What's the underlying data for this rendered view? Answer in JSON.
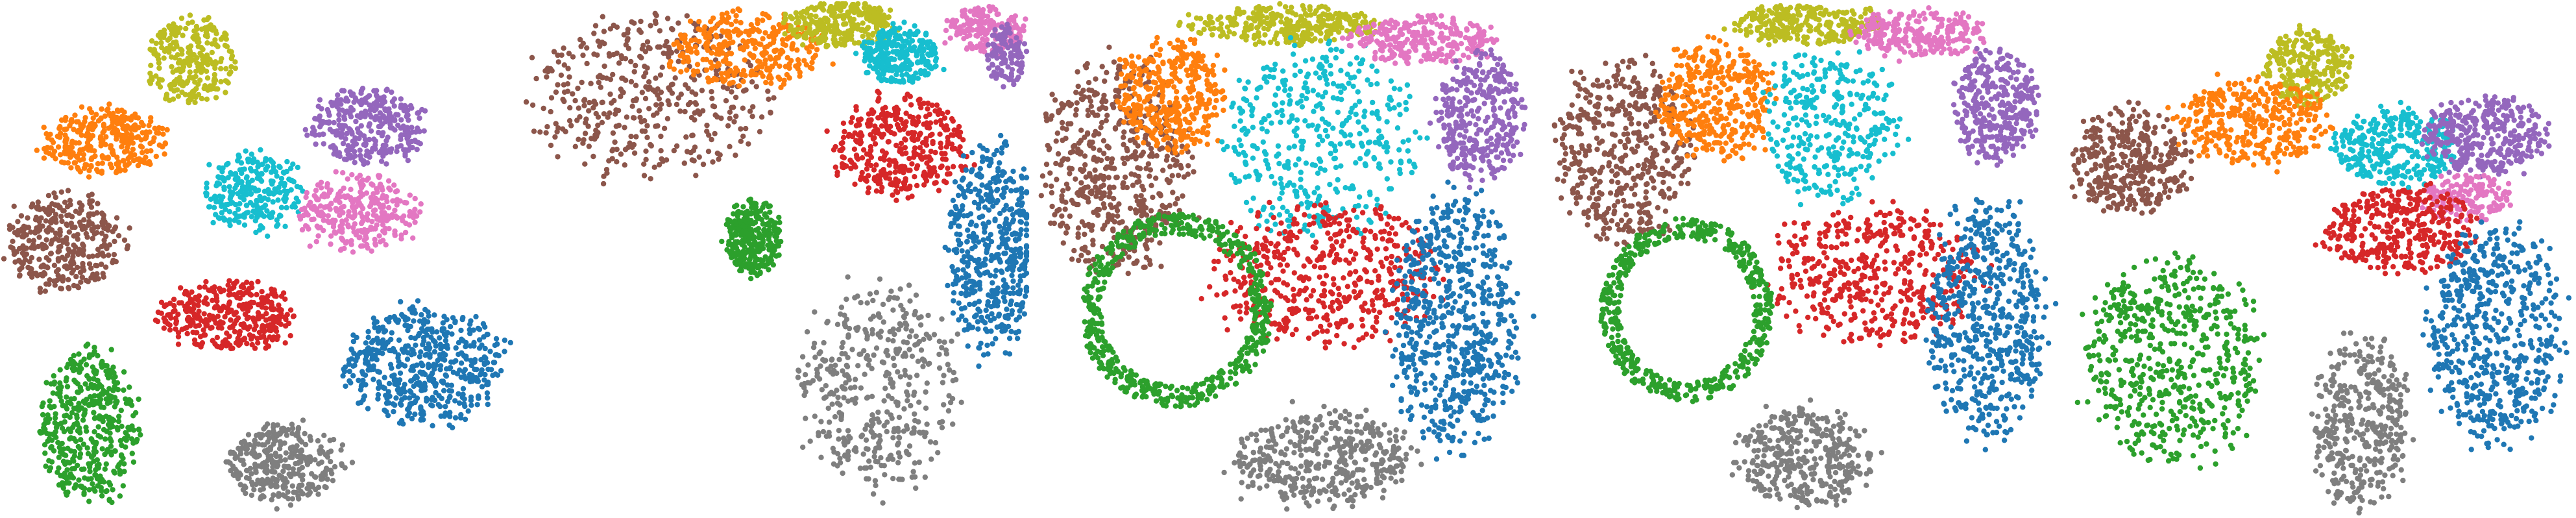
{
  "colors": {
    "blue": "#1f77b4",
    "orange": "#ff7f0e",
    "green": "#2ca02c",
    "red": "#d62728",
    "purple": "#9467bd",
    "brown": "#8c564b",
    "pink": "#e377c2",
    "gray": "#7f7f7f",
    "olive": "#bcbd22",
    "cyan": "#17becf"
  },
  "chart_data": [
    {
      "type": "scatter",
      "title": "",
      "xlabel": "",
      "ylabel": "",
      "axes_visible": false,
      "grid": false,
      "xlim": [
        0,
        1
      ],
      "ylim": [
        0,
        1
      ],
      "clusters": [
        {
          "color": "olive",
          "shape": "blob",
          "cx": 0.37,
          "cy": 0.89,
          "rx": 0.09,
          "ry": 0.09,
          "n": 260
        },
        {
          "color": "orange",
          "shape": "blob",
          "cx": 0.2,
          "cy": 0.73,
          "rx": 0.13,
          "ry": 0.07,
          "n": 320
        },
        {
          "color": "purple",
          "shape": "blob",
          "cx": 0.72,
          "cy": 0.76,
          "rx": 0.12,
          "ry": 0.08,
          "n": 320
        },
        {
          "color": "cyan",
          "shape": "blob",
          "cx": 0.49,
          "cy": 0.63,
          "rx": 0.1,
          "ry": 0.08,
          "n": 260
        },
        {
          "color": "pink",
          "shape": "blob",
          "cx": 0.7,
          "cy": 0.59,
          "rx": 0.12,
          "ry": 0.08,
          "n": 300
        },
        {
          "color": "brown",
          "shape": "blob",
          "cx": 0.12,
          "cy": 0.53,
          "rx": 0.12,
          "ry": 0.1,
          "n": 340
        },
        {
          "color": "red",
          "shape": "blob",
          "cx": 0.44,
          "cy": 0.39,
          "rx": 0.14,
          "ry": 0.07,
          "n": 360
        },
        {
          "color": "blue",
          "shape": "blob",
          "cx": 0.83,
          "cy": 0.29,
          "rx": 0.16,
          "ry": 0.12,
          "n": 500
        },
        {
          "color": "green",
          "shape": "blob",
          "cx": 0.17,
          "cy": 0.17,
          "rx": 0.1,
          "ry": 0.16,
          "n": 440
        },
        {
          "color": "gray",
          "shape": "blob",
          "cx": 0.55,
          "cy": 0.1,
          "rx": 0.12,
          "ry": 0.08,
          "n": 340
        }
      ]
    },
    {
      "type": "scatter",
      "title": "",
      "xlabel": "",
      "ylabel": "",
      "axes_visible": false,
      "grid": false,
      "xlim": [
        0,
        1
      ],
      "ylim": [
        0,
        1
      ],
      "clusters": [
        {
          "color": "brown",
          "shape": "blob",
          "cx": 0.25,
          "cy": 0.82,
          "rx": 0.24,
          "ry": 0.17,
          "n": 420
        },
        {
          "color": "orange",
          "shape": "blob",
          "cx": 0.45,
          "cy": 0.91,
          "rx": 0.16,
          "ry": 0.08,
          "n": 320
        },
        {
          "color": "olive",
          "shape": "blob",
          "cx": 0.63,
          "cy": 0.96,
          "rx": 0.11,
          "ry": 0.05,
          "n": 300
        },
        {
          "color": "cyan",
          "shape": "blob",
          "cx": 0.75,
          "cy": 0.9,
          "rx": 0.08,
          "ry": 0.06,
          "n": 260
        },
        {
          "color": "pink",
          "shape": "blob",
          "cx": 0.92,
          "cy": 0.95,
          "rx": 0.08,
          "ry": 0.05,
          "n": 180
        },
        {
          "color": "purple",
          "shape": "blob",
          "cx": 0.96,
          "cy": 0.9,
          "rx": 0.04,
          "ry": 0.06,
          "n": 120
        },
        {
          "color": "red",
          "shape": "blob",
          "cx": 0.75,
          "cy": 0.72,
          "rx": 0.14,
          "ry": 0.1,
          "n": 380
        },
        {
          "color": "blue",
          "shape": "blob",
          "cx": 0.93,
          "cy": 0.52,
          "rx": 0.09,
          "ry": 0.22,
          "n": 480
        },
        {
          "color": "green",
          "shape": "blob",
          "cx": 0.46,
          "cy": 0.54,
          "rx": 0.06,
          "ry": 0.08,
          "n": 300
        },
        {
          "color": "gray",
          "shape": "blob",
          "cx": 0.71,
          "cy": 0.25,
          "rx": 0.17,
          "ry": 0.22,
          "n": 420
        }
      ]
    },
    {
      "type": "scatter",
      "title": "",
      "xlabel": "",
      "ylabel": "",
      "axes_visible": false,
      "grid": false,
      "xlim": [
        0,
        1
      ],
      "ylim": [
        0,
        1
      ],
      "clusters": [
        {
          "color": "brown",
          "shape": "blob",
          "cx": 0.16,
          "cy": 0.68,
          "rx": 0.15,
          "ry": 0.22,
          "n": 540
        },
        {
          "color": "orange",
          "shape": "blob",
          "cx": 0.27,
          "cy": 0.82,
          "rx": 0.11,
          "ry": 0.12,
          "n": 380
        },
        {
          "color": "olive",
          "shape": "blob",
          "cx": 0.5,
          "cy": 0.96,
          "rx": 0.2,
          "ry": 0.04,
          "n": 320
        },
        {
          "color": "cyan",
          "shape": "blob",
          "cx": 0.56,
          "cy": 0.73,
          "rx": 0.2,
          "ry": 0.2,
          "n": 420
        },
        {
          "color": "pink",
          "shape": "blob",
          "cx": 0.76,
          "cy": 0.93,
          "rx": 0.15,
          "ry": 0.05,
          "n": 260
        },
        {
          "color": "purple",
          "shape": "blob",
          "cx": 0.88,
          "cy": 0.78,
          "rx": 0.09,
          "ry": 0.13,
          "n": 340
        },
        {
          "color": "red",
          "shape": "blob",
          "cx": 0.58,
          "cy": 0.47,
          "rx": 0.23,
          "ry": 0.15,
          "n": 500
        },
        {
          "color": "blue",
          "shape": "blob",
          "cx": 0.83,
          "cy": 0.38,
          "rx": 0.13,
          "ry": 0.26,
          "n": 640
        },
        {
          "color": "green",
          "shape": "ring",
          "cx": 0.28,
          "cy": 0.4,
          "rx": 0.19,
          "ry": 0.19,
          "n": 560
        },
        {
          "color": "gray",
          "shape": "blob",
          "cx": 0.57,
          "cy": 0.11,
          "rx": 0.19,
          "ry": 0.1,
          "n": 420
        }
      ]
    },
    {
      "type": "scatter",
      "title": "",
      "xlabel": "",
      "ylabel": "",
      "axes_visible": false,
      "grid": false,
      "xlim": [
        0,
        1
      ],
      "ylim": [
        0,
        1
      ],
      "clusters": [
        {
          "color": "brown",
          "shape": "blob",
          "cx": 0.15,
          "cy": 0.71,
          "rx": 0.14,
          "ry": 0.19,
          "n": 480
        },
        {
          "color": "orange",
          "shape": "blob",
          "cx": 0.33,
          "cy": 0.81,
          "rx": 0.12,
          "ry": 0.12,
          "n": 380
        },
        {
          "color": "olive",
          "shape": "blob",
          "cx": 0.5,
          "cy": 0.96,
          "rx": 0.16,
          "ry": 0.04,
          "n": 280
        },
        {
          "color": "cyan",
          "shape": "blob",
          "cx": 0.55,
          "cy": 0.76,
          "rx": 0.14,
          "ry": 0.16,
          "n": 320
        },
        {
          "color": "pink",
          "shape": "blob",
          "cx": 0.73,
          "cy": 0.94,
          "rx": 0.14,
          "ry": 0.05,
          "n": 240
        },
        {
          "color": "purple",
          "shape": "blob",
          "cx": 0.88,
          "cy": 0.8,
          "rx": 0.09,
          "ry": 0.12,
          "n": 320
        },
        {
          "color": "red",
          "shape": "blob",
          "cx": 0.64,
          "cy": 0.47,
          "rx": 0.22,
          "ry": 0.14,
          "n": 460
        },
        {
          "color": "blue",
          "shape": "blob",
          "cx": 0.86,
          "cy": 0.38,
          "rx": 0.12,
          "ry": 0.25,
          "n": 580
        },
        {
          "color": "green",
          "shape": "ring",
          "cx": 0.27,
          "cy": 0.4,
          "rx": 0.17,
          "ry": 0.18,
          "n": 520
        },
        {
          "color": "gray",
          "shape": "blob",
          "cx": 0.5,
          "cy": 0.11,
          "rx": 0.14,
          "ry": 0.1,
          "n": 380
        }
      ]
    },
    {
      "type": "scatter",
      "title": "",
      "xlabel": "",
      "ylabel": "",
      "axes_visible": false,
      "grid": false,
      "xlim": [
        0,
        1
      ],
      "ylim": [
        0,
        1
      ],
      "clusters": [
        {
          "color": "olive",
          "shape": "blob",
          "cx": 0.48,
          "cy": 0.88,
          "rx": 0.09,
          "ry": 0.08,
          "n": 260
        },
        {
          "color": "orange",
          "shape": "blob",
          "cx": 0.37,
          "cy": 0.77,
          "rx": 0.16,
          "ry": 0.09,
          "n": 360
        },
        {
          "color": "brown",
          "shape": "blob",
          "cx": 0.13,
          "cy": 0.69,
          "rx": 0.12,
          "ry": 0.11,
          "n": 360
        },
        {
          "color": "cyan",
          "shape": "blob",
          "cx": 0.65,
          "cy": 0.72,
          "rx": 0.13,
          "ry": 0.08,
          "n": 320
        },
        {
          "color": "purple",
          "shape": "blob",
          "cx": 0.83,
          "cy": 0.74,
          "rx": 0.13,
          "ry": 0.08,
          "n": 360
        },
        {
          "color": "pink",
          "shape": "blob",
          "cx": 0.79,
          "cy": 0.62,
          "rx": 0.09,
          "ry": 0.05,
          "n": 160
        },
        {
          "color": "red",
          "shape": "blob",
          "cx": 0.66,
          "cy": 0.56,
          "rx": 0.16,
          "ry": 0.09,
          "n": 380
        },
        {
          "color": "blue",
          "shape": "blob",
          "cx": 0.85,
          "cy": 0.35,
          "rx": 0.14,
          "ry": 0.22,
          "n": 560
        },
        {
          "color": "green",
          "shape": "blob",
          "cx": 0.21,
          "cy": 0.3,
          "rx": 0.19,
          "ry": 0.21,
          "n": 560
        },
        {
          "color": "gray",
          "shape": "blob",
          "cx": 0.58,
          "cy": 0.18,
          "rx": 0.1,
          "ry": 0.18,
          "n": 380
        }
      ]
    }
  ]
}
